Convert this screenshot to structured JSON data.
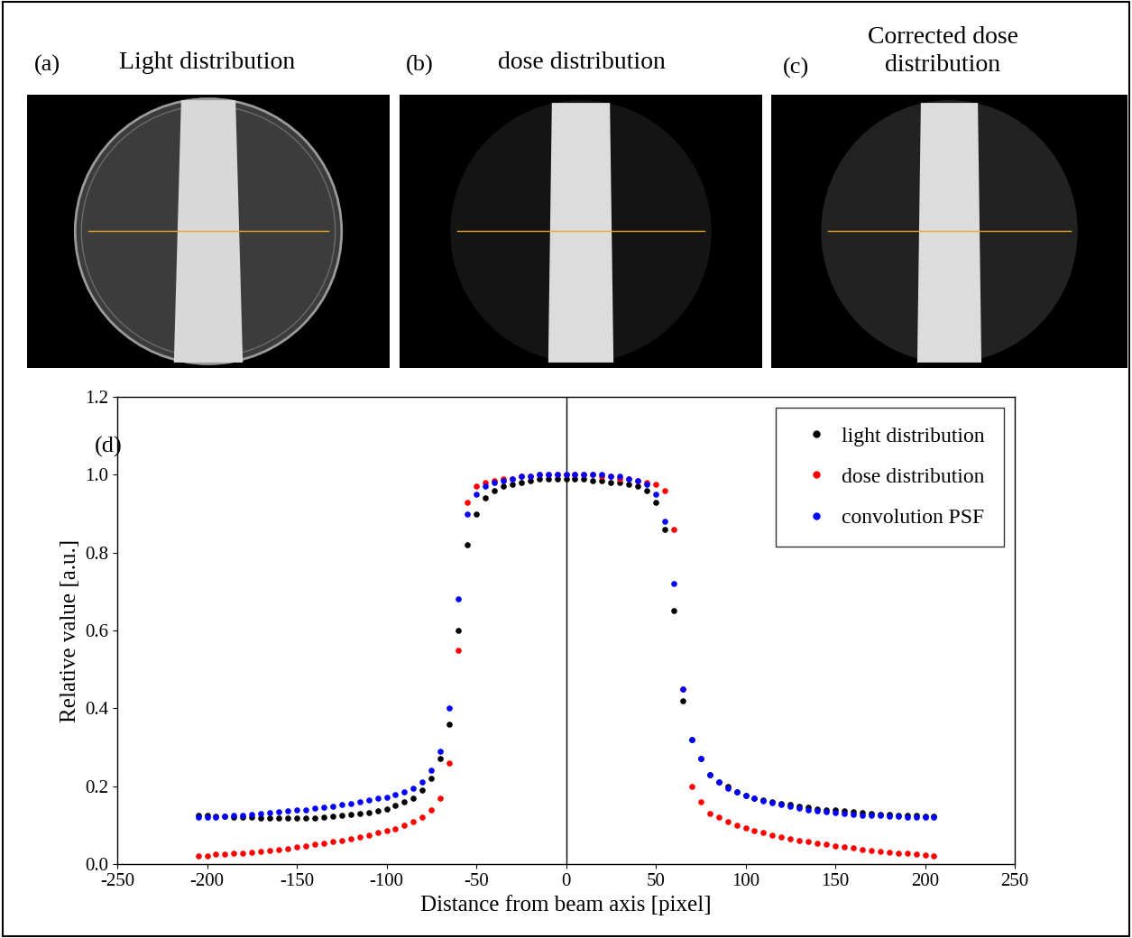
{
  "panels": [
    {
      "label": "(a)",
      "title": "Light distribution"
    },
    {
      "label": "(b)",
      "title": "dose distribution"
    },
    {
      "label": "(c)",
      "title": "Corrected dose\ndistribution"
    }
  ],
  "chart_data": {
    "type": "scatter",
    "annotations": [
      "(d)"
    ],
    "x_label": "Distance from beam axis [pixel]",
    "y_label": "Relative value [a.u.]",
    "xlim": [
      -250,
      250
    ],
    "ylim": [
      0.0,
      1.2
    ],
    "xticks": [
      -250,
      -200,
      -150,
      -100,
      -50,
      0,
      50,
      100,
      150,
      200,
      250
    ],
    "yticks": [
      0.0,
      0.2,
      0.4,
      0.6,
      0.8,
      1.0,
      1.2
    ],
    "legend": "upper right",
    "marker": "o",
    "x": [
      -205,
      -200,
      -195,
      -190,
      -185,
      -180,
      -175,
      -170,
      -165,
      -160,
      -155,
      -150,
      -145,
      -140,
      -135,
      -130,
      -125,
      -120,
      -115,
      -110,
      -105,
      -100,
      -95,
      -90,
      -85,
      -80,
      -75,
      -70,
      -65,
      -60,
      -55,
      -50,
      -45,
      -40,
      -35,
      -30,
      -25,
      -20,
      -15,
      -10,
      -5,
      0,
      5,
      10,
      15,
      20,
      25,
      30,
      35,
      40,
      45,
      50,
      55,
      60,
      65,
      70,
      75,
      80,
      85,
      90,
      95,
      100,
      105,
      110,
      115,
      120,
      125,
      130,
      135,
      140,
      145,
      150,
      155,
      160,
      165,
      170,
      175,
      180,
      185,
      190,
      195,
      200,
      205
    ],
    "series": [
      {
        "name": "light distribution",
        "color": "#000000",
        "values": [
          0.125,
          0.125,
          0.123,
          0.122,
          0.121,
          0.12,
          0.12,
          0.118,
          0.118,
          0.117,
          0.117,
          0.117,
          0.117,
          0.118,
          0.12,
          0.122,
          0.125,
          0.128,
          0.13,
          0.133,
          0.137,
          0.142,
          0.15,
          0.16,
          0.17,
          0.19,
          0.22,
          0.27,
          0.36,
          0.6,
          0.82,
          0.9,
          0.94,
          0.96,
          0.97,
          0.975,
          0.98,
          0.985,
          0.99,
          0.99,
          0.99,
          0.99,
          0.99,
          0.99,
          0.985,
          0.985,
          0.98,
          0.98,
          0.975,
          0.97,
          0.96,
          0.93,
          0.86,
          0.65,
          0.42,
          0.32,
          0.27,
          0.23,
          0.21,
          0.2,
          0.185,
          0.175,
          0.17,
          0.165,
          0.16,
          0.156,
          0.152,
          0.148,
          0.145,
          0.142,
          0.14,
          0.138,
          0.136,
          0.134,
          0.132,
          0.13,
          0.128,
          0.127,
          0.126,
          0.125,
          0.124,
          0.123,
          0.123
        ]
      },
      {
        "name": "dose distribution",
        "color": "#ff0000",
        "values": [
          0.02,
          0.02,
          0.025,
          0.025,
          0.027,
          0.028,
          0.03,
          0.032,
          0.035,
          0.037,
          0.04,
          0.043,
          0.046,
          0.05,
          0.053,
          0.057,
          0.06,
          0.065,
          0.07,
          0.075,
          0.08,
          0.085,
          0.09,
          0.1,
          0.11,
          0.12,
          0.14,
          0.17,
          0.26,
          0.55,
          0.93,
          0.97,
          0.98,
          0.985,
          0.99,
          0.99,
          0.995,
          0.995,
          1.0,
          1.0,
          1.0,
          1.0,
          1.0,
          1.0,
          1.0,
          0.995,
          0.995,
          0.99,
          0.99,
          0.985,
          0.98,
          0.975,
          0.96,
          0.86,
          0.45,
          0.2,
          0.16,
          0.13,
          0.12,
          0.11,
          0.1,
          0.092,
          0.085,
          0.08,
          0.075,
          0.07,
          0.065,
          0.06,
          0.057,
          0.053,
          0.05,
          0.047,
          0.044,
          0.041,
          0.038,
          0.035,
          0.033,
          0.03,
          0.028,
          0.027,
          0.025,
          0.024,
          0.022
        ]
      },
      {
        "name": "convolution PSF",
        "color": "#0000ff",
        "values": [
          0.12,
          0.12,
          0.12,
          0.122,
          0.124,
          0.126,
          0.128,
          0.13,
          0.132,
          0.134,
          0.136,
          0.138,
          0.14,
          0.143,
          0.146,
          0.149,
          0.152,
          0.156,
          0.16,
          0.164,
          0.168,
          0.172,
          0.178,
          0.185,
          0.195,
          0.21,
          0.24,
          0.29,
          0.4,
          0.68,
          0.9,
          0.95,
          0.97,
          0.98,
          0.985,
          0.99,
          0.995,
          0.997,
          1.0,
          1.0,
          1.0,
          1.0,
          1.0,
          1.0,
          1.0,
          1.0,
          0.997,
          0.995,
          0.99,
          0.985,
          0.975,
          0.95,
          0.88,
          0.72,
          0.45,
          0.32,
          0.27,
          0.23,
          0.21,
          0.195,
          0.185,
          0.175,
          0.168,
          0.162,
          0.157,
          0.152,
          0.148,
          0.144,
          0.14,
          0.137,
          0.134,
          0.132,
          0.13,
          0.128,
          0.126,
          0.125,
          0.124,
          0.123,
          0.122,
          0.121,
          0.12,
          0.12,
          0.12
        ]
      }
    ]
  }
}
